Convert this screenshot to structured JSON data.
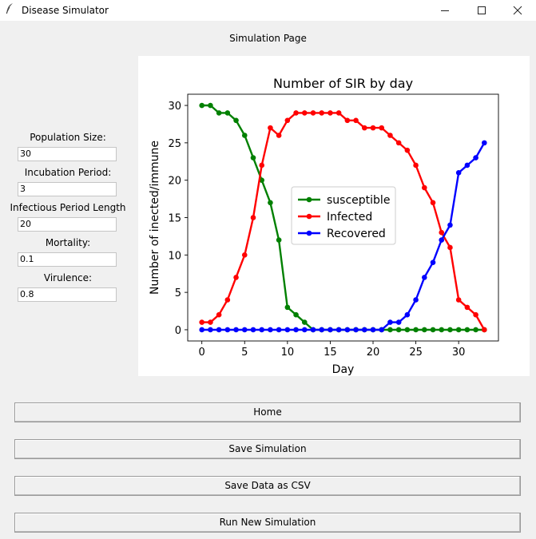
{
  "window": {
    "title": "Disease Simulator",
    "icon": "feather-icon",
    "minimize_glyph": "—",
    "maximize_glyph": "☐",
    "close_glyph": "✕"
  },
  "page_title": "Simulation Page",
  "fields": [
    {
      "label": "Population Size:",
      "value": "30"
    },
    {
      "label": "Incubation Period:",
      "value": "3"
    },
    {
      "label": "Infectious Period Length",
      "value": "20"
    },
    {
      "label": "Mortality:",
      "value": "0.1"
    },
    {
      "label": "Virulence:",
      "value": "0.8"
    }
  ],
  "buttons": {
    "home": "Home",
    "save_simulation": "Save Simulation",
    "save_csv": "Save Data as CSV",
    "run_new": "Run New Simulation"
  },
  "chart_data": {
    "type": "line",
    "title": "Number of SIR by day",
    "xlabel": "Day",
    "ylabel": "Number of inected/immune",
    "xlim": [
      -1.65,
      34.65
    ],
    "ylim": [
      -1.5,
      31.5
    ],
    "xticks": [
      0,
      5,
      10,
      15,
      20,
      25,
      30
    ],
    "yticks": [
      0,
      5,
      10,
      15,
      20,
      25,
      30
    ],
    "grid": false,
    "legend_position": "center",
    "x": [
      0,
      1,
      2,
      3,
      4,
      5,
      6,
      7,
      8,
      9,
      10,
      11,
      12,
      13,
      14,
      15,
      16,
      17,
      18,
      19,
      20,
      21,
      22,
      23,
      24,
      25,
      26,
      27,
      28,
      29,
      30,
      31,
      32,
      33
    ],
    "series": [
      {
        "name": "susceptible",
        "color": "#008000",
        "values": [
          30,
          30,
          29,
          29,
          28,
          26,
          23,
          20,
          17,
          12,
          3,
          2,
          1,
          0,
          0,
          0,
          0,
          0,
          0,
          0,
          0,
          0,
          0,
          0,
          0,
          0,
          0,
          0,
          0,
          0,
          0,
          0,
          0,
          0
        ]
      },
      {
        "name": "Infected",
        "color": "#ff0000",
        "values": [
          1,
          1,
          2,
          4,
          7,
          10,
          15,
          22,
          27,
          26,
          28,
          29,
          29,
          29,
          29,
          29,
          29,
          28,
          28,
          27,
          27,
          27,
          26,
          25,
          24,
          22,
          19,
          17,
          13,
          11,
          4,
          3,
          2,
          0
        ]
      },
      {
        "name": "Recovered",
        "color": "#0000ff",
        "values": [
          0,
          0,
          0,
          0,
          0,
          0,
          0,
          0,
          0,
          0,
          0,
          0,
          0,
          0,
          0,
          0,
          0,
          0,
          0,
          0,
          0,
          0,
          1,
          1,
          2,
          4,
          7,
          9,
          12,
          14,
          21,
          22,
          23,
          25
        ]
      }
    ]
  }
}
